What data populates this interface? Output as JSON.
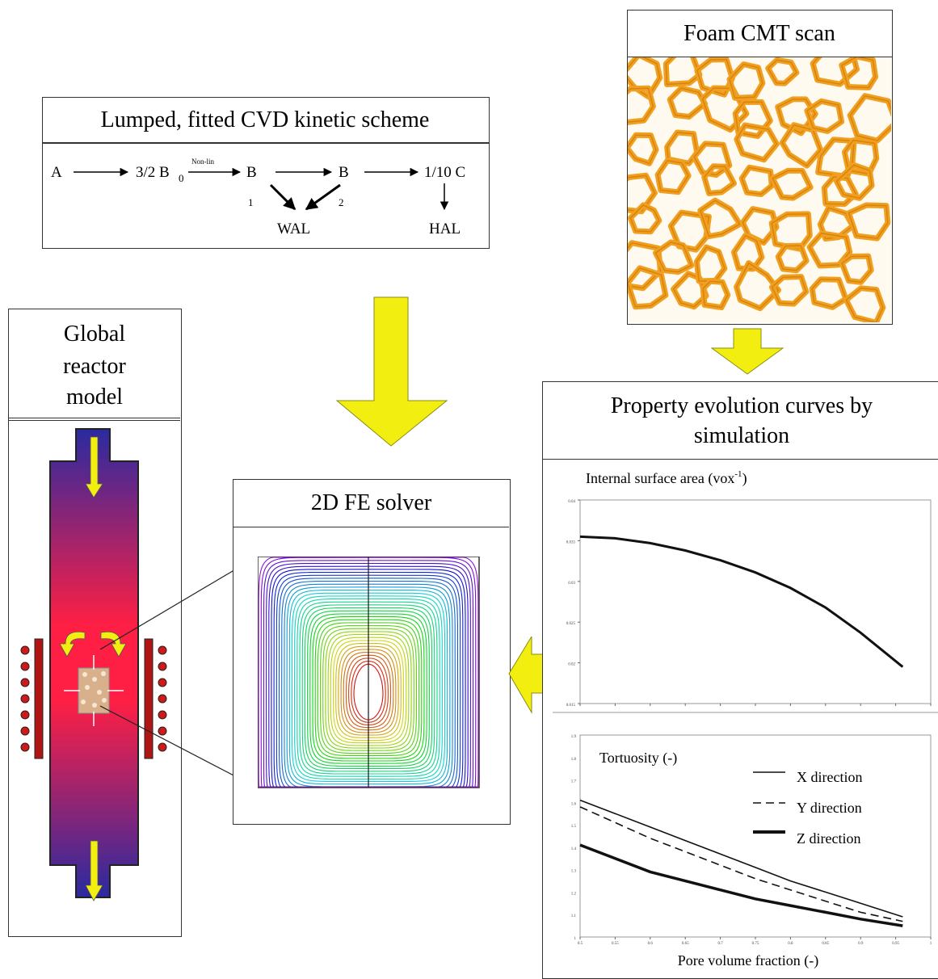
{
  "kinetic_scheme": {
    "title": "Lumped, fitted CVD kinetic scheme",
    "species_a": "A",
    "species_b0": "3/2 B",
    "subscript_0": "0",
    "arrow_label": "Non-lin",
    "species_b1": "B",
    "species_b2": "B",
    "species_c": "1/10 C",
    "path_1": "1",
    "path_2": "2",
    "wal": "WAL",
    "hal": "HAL"
  },
  "foam_scan": {
    "title": "Foam CMT scan",
    "colors": {
      "strut": "#f0a020",
      "strut_edge": "#d9820c",
      "pore": "#fffaf0"
    }
  },
  "reactor": {
    "title_lines": [
      "Global",
      "reactor",
      "model"
    ],
    "colors": {
      "top": "#2a2aa0",
      "hot": "#ff2040",
      "arrow": "#f2ef10",
      "heater": "#b01515",
      "coil": "#d01a1a"
    }
  },
  "fe_solver": {
    "title": "2D FE solver"
  },
  "property_curves": {
    "title_line1": "Property evolution curves by",
    "title_line2": "simulation",
    "surface_label": "Internal surface area (vox",
    "surface_label_sup": "-1",
    "surface_label_end": ")",
    "tortuosity_label": "Tortuosity (-)",
    "x_axis_label": "Pore volume fraction (-)",
    "legend": [
      "X direction",
      "Y direction",
      "Z direction"
    ]
  },
  "chart_data": [
    {
      "type": "line",
      "xlim": [
        0.5,
        1.0
      ],
      "ylim": [
        0.015,
        0.04
      ],
      "y_tick_labels": [
        "0.04",
        "0.035",
        "0.03",
        "0.025",
        "0.02",
        "0.015"
      ],
      "series": [
        {
          "x": [
            0.5,
            0.55,
            0.6,
            0.65,
            0.7,
            0.75,
            0.8,
            0.85,
            0.9,
            0.96
          ],
          "y": [
            0.0355,
            0.0353,
            0.0347,
            0.0338,
            0.0326,
            0.0311,
            0.0292,
            0.0268,
            0.0237,
            0.0195
          ]
        }
      ]
    },
    {
      "type": "line",
      "xlim": [
        0.5,
        1.0
      ],
      "ylim": [
        1.0,
        1.9
      ],
      "x_tick_labels": [
        "0.5",
        "0.55",
        "0.6",
        "0.65",
        "0.7",
        "0.75",
        "0.8",
        "0.85",
        "0.9",
        "0.95",
        "1"
      ],
      "y_tick_labels": [
        "1.9",
        "1.8",
        "1.7",
        "1.6",
        "1.5",
        "1.4",
        "1.3",
        "1.2",
        "1.1",
        "1"
      ],
      "series": [
        {
          "name": "X direction",
          "x": [
            0.5,
            0.55,
            0.6,
            0.65,
            0.7,
            0.75,
            0.8,
            0.85,
            0.9,
            0.96
          ],
          "y": [
            1.61,
            1.55,
            1.49,
            1.43,
            1.37,
            1.31,
            1.25,
            1.2,
            1.15,
            1.09
          ]
        },
        {
          "name": "Y direction",
          "x": [
            0.5,
            0.55,
            0.6,
            0.65,
            0.7,
            0.75,
            0.8,
            0.85,
            0.9,
            0.96
          ],
          "y": [
            1.58,
            1.51,
            1.44,
            1.38,
            1.32,
            1.26,
            1.21,
            1.16,
            1.11,
            1.07
          ]
        },
        {
          "name": "Z direction",
          "x": [
            0.5,
            0.55,
            0.6,
            0.65,
            0.7,
            0.75,
            0.8,
            0.85,
            0.9,
            0.96
          ],
          "y": [
            1.41,
            1.35,
            1.29,
            1.25,
            1.21,
            1.17,
            1.14,
            1.11,
            1.08,
            1.05
          ]
        }
      ]
    }
  ]
}
